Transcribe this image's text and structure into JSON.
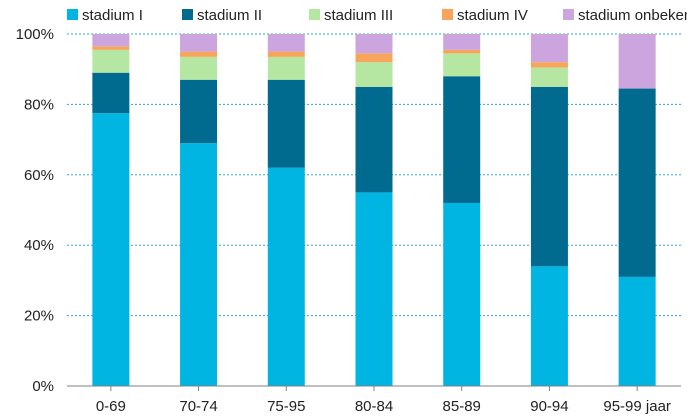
{
  "chart_data": {
    "type": "bar",
    "stacked": true,
    "categories": [
      "0-69",
      "70-74",
      "75-95",
      "80-84",
      "85-89",
      "90-94",
      "95-99 jaar"
    ],
    "series": [
      {
        "name": "stadium I",
        "color": "#00b5e2",
        "values": [
          77.5,
          69,
          62,
          55,
          52,
          34,
          31
        ]
      },
      {
        "name": "stadium II",
        "color": "#006b8f",
        "values": [
          11.5,
          18,
          25,
          30,
          36,
          51,
          53.5
        ]
      },
      {
        "name": "stadium III",
        "color": "#b5e6a2",
        "values": [
          6.5,
          6.5,
          6.5,
          7,
          6.5,
          5.5,
          0
        ]
      },
      {
        "name": "stadium IV",
        "color": "#f7a55a",
        "values": [
          1,
          1.5,
          1.5,
          2.5,
          1,
          1.5,
          0
        ]
      },
      {
        "name": "stadium onbekend",
        "color": "#cda5de",
        "values": [
          3.5,
          5,
          5,
          5.5,
          4.5,
          8,
          15.5
        ]
      }
    ],
    "yticks": [
      "0%",
      "20%",
      "40%",
      "60%",
      "80%",
      "100%"
    ],
    "ylim": [
      0,
      100
    ],
    "grid": true,
    "legend": "top"
  }
}
